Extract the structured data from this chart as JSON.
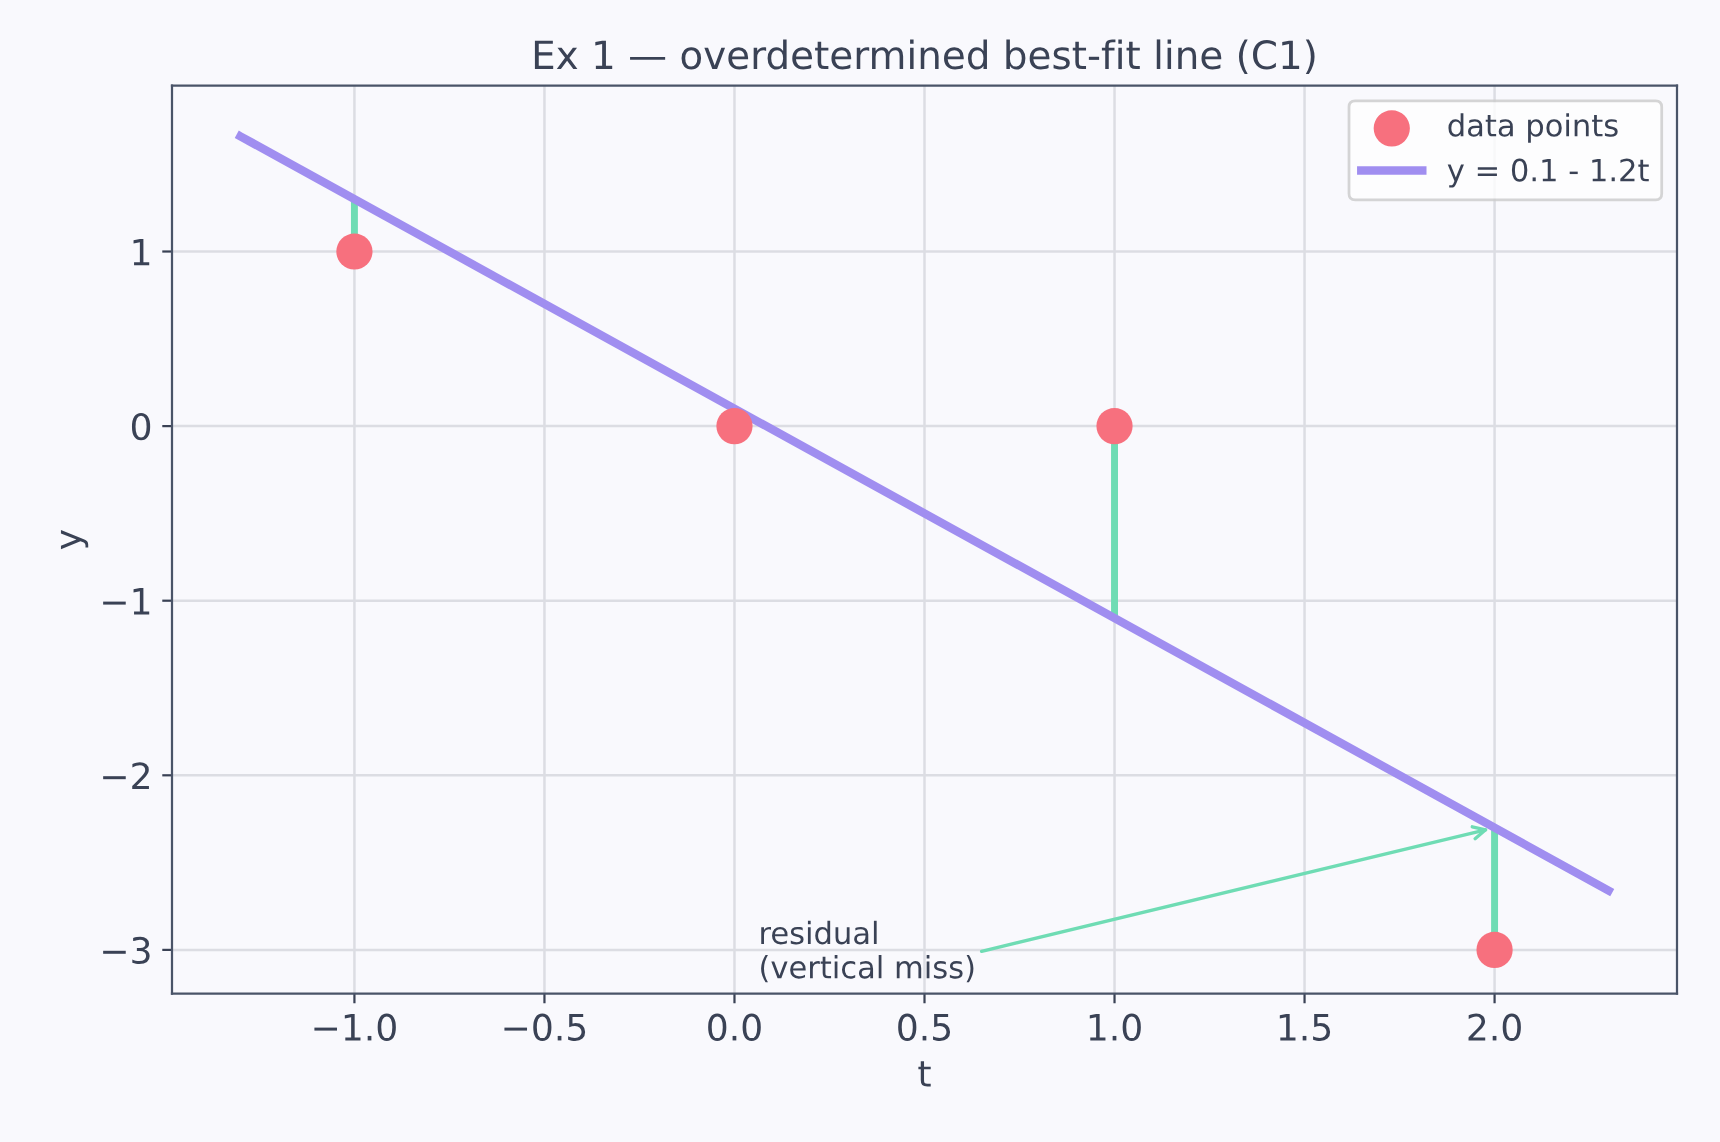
{
  "chart_data": {
    "type": "scatter",
    "title": "Ex 1 — overdetermined best-fit line (C1)",
    "xlabel": "t",
    "ylabel": "y",
    "series": [
      {
        "name": "data points",
        "marker": "circle",
        "color": "#f7707e",
        "x": [
          -1,
          0,
          1,
          2
        ],
        "values": [
          1,
          0,
          0,
          -3
        ],
        "errors": [
          [
            1,
            1.3
          ],
          null,
          [
            -1.1,
            0
          ],
          [
            -3,
            -2.3
          ]
        ]
      },
      {
        "name": "y = 0.1 - 1.2t",
        "type": "line",
        "color": "#a08ef0",
        "x": [
          -1.3,
          2.3
        ],
        "values": [
          1.66,
          -2.66
        ]
      }
    ],
    "annotations": [
      {
        "text": "residual\n(vertical miss)",
        "x": 2,
        "y": -2.3
      }
    ],
    "xlim": [
      -1.48,
      2.48
    ],
    "ylim": [
      -3.25,
      1.95
    ],
    "xticks": [
      {
        "value": -1.0,
        "label": "−1.0"
      },
      {
        "value": -0.5,
        "label": "−0.5"
      },
      {
        "value": 0.0,
        "label": "0.0"
      },
      {
        "value": 0.5,
        "label": "0.5"
      },
      {
        "value": 1.0,
        "label": "1.0"
      },
      {
        "value": 1.5,
        "label": "1.5"
      },
      {
        "value": 2.0,
        "label": "2.0"
      }
    ],
    "yticks": [
      {
        "value": -3,
        "label": "−3"
      },
      {
        "value": -2,
        "label": "−2"
      },
      {
        "value": -1,
        "label": "−1"
      },
      {
        "value": 0,
        "label": "0"
      },
      {
        "value": 1,
        "label": "1"
      }
    ],
    "grid": true,
    "legend": "top right"
  }
}
